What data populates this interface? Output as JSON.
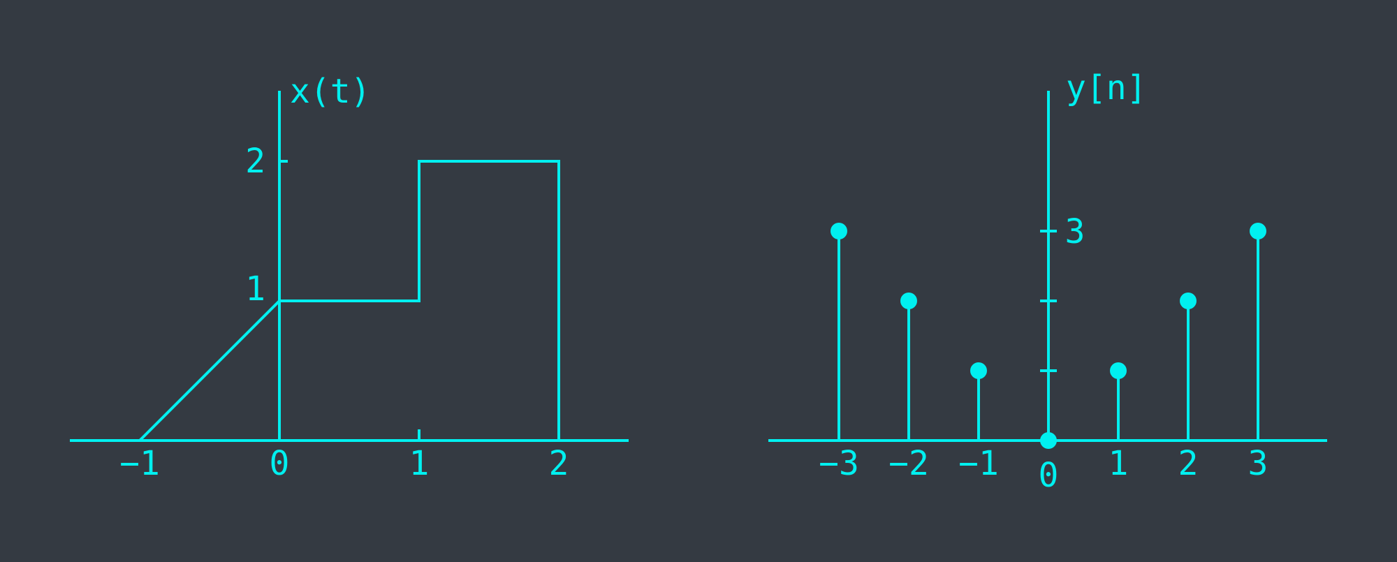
{
  "colors": {
    "background": "#343a42",
    "signal": "#00f0f0"
  },
  "chart_data": [
    {
      "type": "line",
      "ylabel": "x(t)",
      "x_ticks": [
        "-1",
        "0",
        "1",
        "2"
      ],
      "y_ticks": [
        "1",
        "2"
      ],
      "xlim": [
        -1.5,
        2.5
      ],
      "ylim": [
        0,
        2.5
      ],
      "series": [
        {
          "x": [
            -1,
            0,
            1,
            1,
            2,
            2
          ],
          "y": [
            0,
            1,
            1,
            2,
            2,
            0
          ]
        }
      ]
    },
    {
      "type": "stem",
      "ylabel": "y[n]",
      "x_ticks": [
        "-3",
        "-2",
        "-1",
        "0",
        "1",
        "2",
        "3"
      ],
      "y_ticks": [
        "3"
      ],
      "xlim": [
        -4,
        4
      ],
      "ylim": [
        0,
        5
      ],
      "series": [
        {
          "x": [
            -3,
            -2,
            -1,
            0,
            1,
            2,
            3
          ],
          "y": [
            3,
            2,
            1,
            0,
            1,
            2,
            3
          ]
        }
      ]
    }
  ]
}
